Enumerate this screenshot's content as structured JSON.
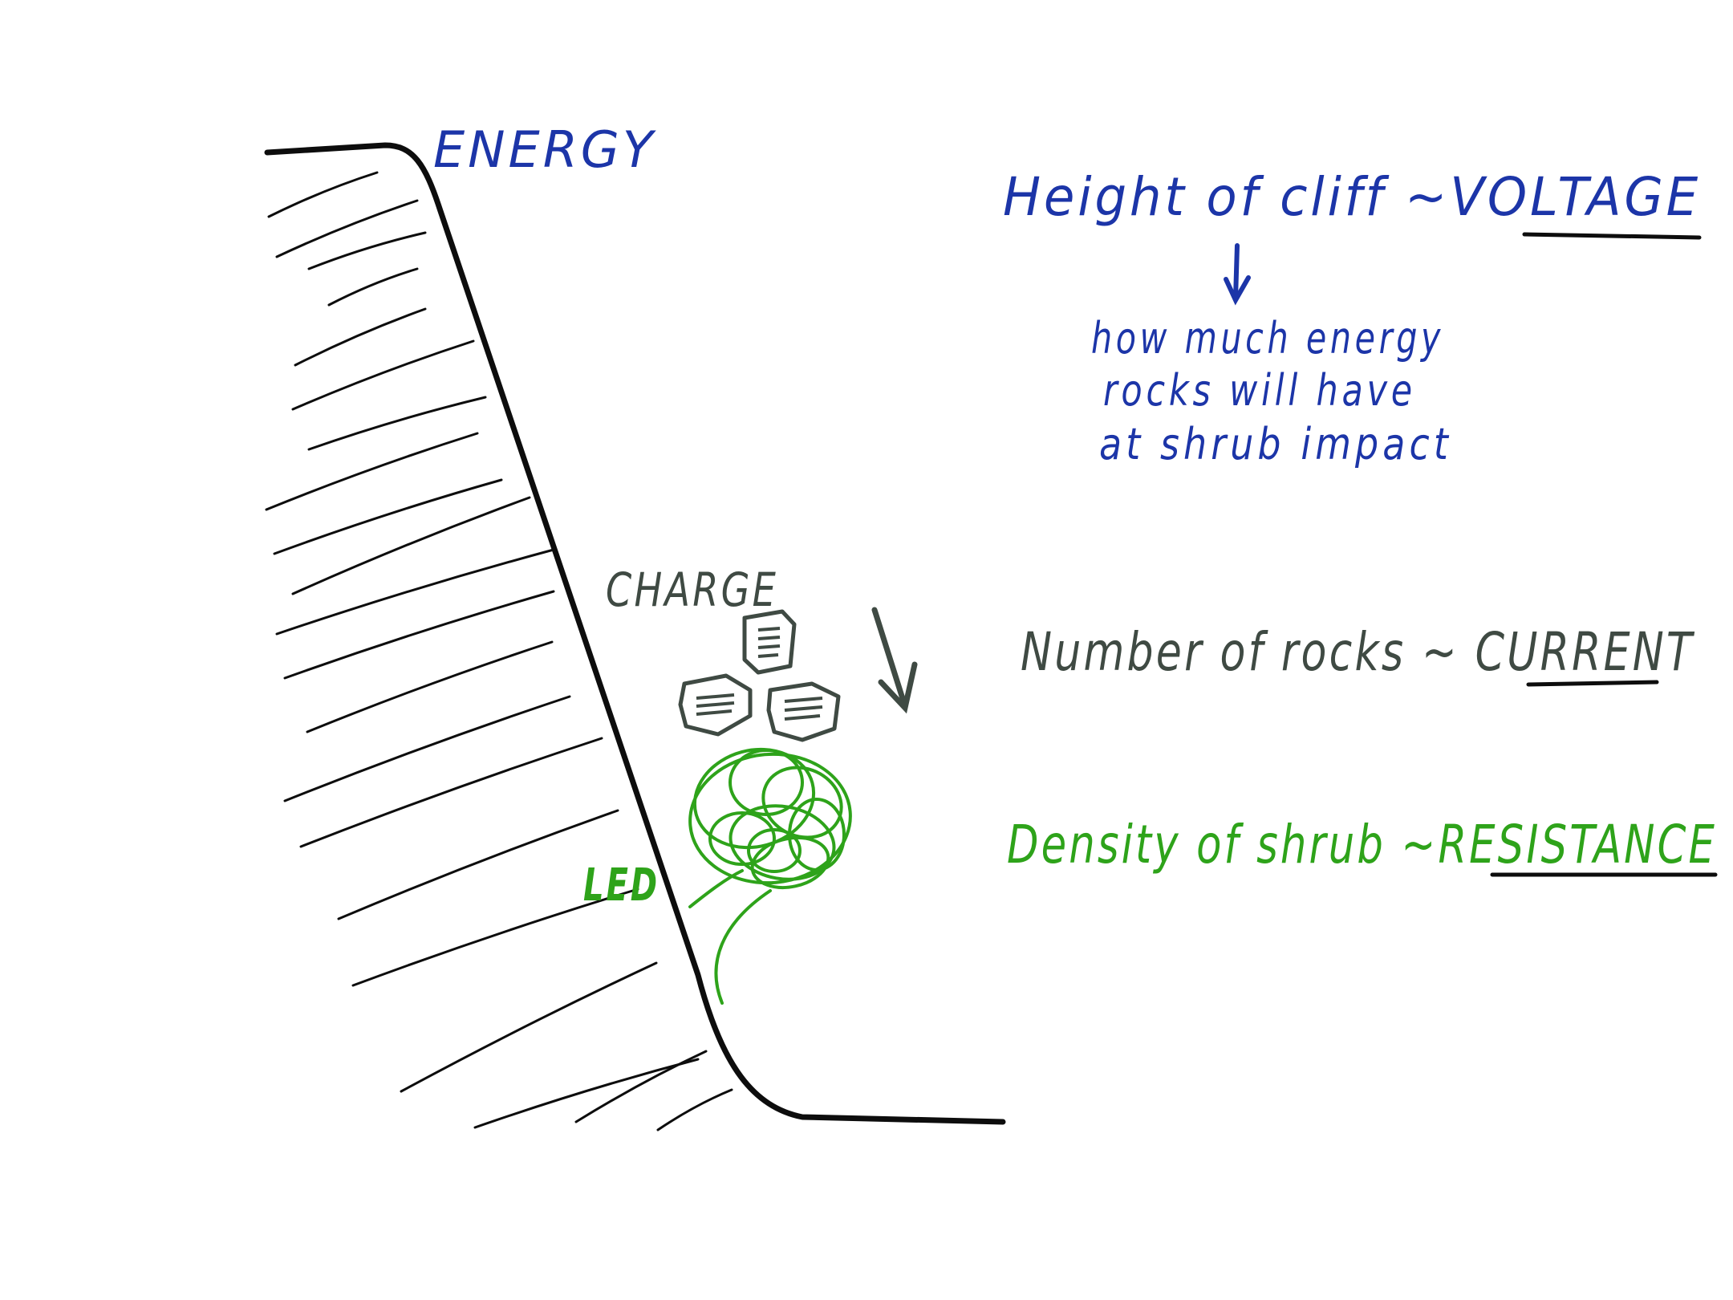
{
  "colors": {
    "ink_black": "#0d0d0d",
    "ink_blue": "#1c35a8",
    "ink_gray": "#3f4a43",
    "ink_green": "#2ea31a"
  },
  "labels": {
    "energy": "ENERGY",
    "charge": "CHARGE",
    "led": "LED"
  },
  "voltage": {
    "text": "Height of cliff ~VOLTAGE",
    "note_lines": [
      "how much energy",
      "rocks will have",
      "at shrub impact"
    ]
  },
  "current": {
    "text": "Number of rocks ~ CURRENT"
  },
  "resistance": {
    "text": "Density of shrub ~RESISTANCE"
  }
}
